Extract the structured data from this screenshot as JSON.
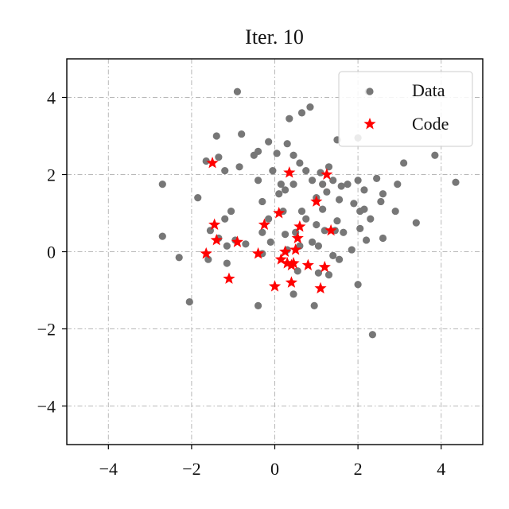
{
  "chart_data": {
    "type": "scatter",
    "title": "Iter. 10",
    "xlabel": "",
    "ylabel": "",
    "xlim": [
      -5,
      5
    ],
    "ylim": [
      -5,
      5
    ],
    "xticks": [
      -4,
      -2,
      0,
      2,
      4
    ],
    "yticks": [
      -4,
      -2,
      0,
      2,
      4
    ],
    "xtick_labels": [
      "−4",
      "−2",
      "0",
      "2",
      "4"
    ],
    "ytick_labels": [
      "−4",
      "−2",
      "0",
      "2",
      "4"
    ],
    "grid": true,
    "legend": {
      "position": "top-right",
      "entries": [
        "Data",
        "Code"
      ]
    },
    "series": [
      {
        "name": "Data",
        "marker": "circle",
        "color": "#777777",
        "points": [
          [
            -0.9,
            4.15
          ],
          [
            2.25,
            4.15
          ],
          [
            -1.4,
            3.0
          ],
          [
            -0.8,
            3.05
          ],
          [
            -0.15,
            2.85
          ],
          [
            0.65,
            3.6
          ],
          [
            0.85,
            3.75
          ],
          [
            0.35,
            3.45
          ],
          [
            -0.4,
            2.6
          ],
          [
            0.05,
            2.55
          ],
          [
            0.3,
            2.8
          ],
          [
            0.45,
            2.5
          ],
          [
            1.5,
            2.9
          ],
          [
            2.0,
            2.95
          ],
          [
            -1.65,
            2.35
          ],
          [
            -1.35,
            2.45
          ],
          [
            -1.2,
            2.1
          ],
          [
            -0.5,
            2.5
          ],
          [
            -0.85,
            2.2
          ],
          [
            -0.05,
            2.1
          ],
          [
            0.6,
            2.3
          ],
          [
            0.75,
            2.1
          ],
          [
            1.1,
            2.05
          ],
          [
            1.3,
            2.2
          ],
          [
            -2.7,
            1.75
          ],
          [
            -1.85,
            1.4
          ],
          [
            -0.4,
            1.85
          ],
          [
            0.15,
            1.75
          ],
          [
            0.25,
            1.6
          ],
          [
            0.45,
            1.75
          ],
          [
            0.1,
            1.5
          ],
          [
            -0.3,
            1.3
          ],
          [
            0.9,
            1.85
          ],
          [
            1.15,
            1.75
          ],
          [
            1.25,
            1.55
          ],
          [
            1.4,
            1.85
          ],
          [
            1.6,
            1.7
          ],
          [
            1.75,
            1.75
          ],
          [
            2.0,
            1.85
          ],
          [
            2.15,
            1.6
          ],
          [
            2.45,
            1.9
          ],
          [
            1.0,
            1.4
          ],
          [
            0.65,
            1.05
          ],
          [
            0.2,
            1.05
          ],
          [
            -1.05,
            1.05
          ],
          [
            -1.2,
            0.85
          ],
          [
            -0.15,
            0.85
          ],
          [
            1.15,
            1.1
          ],
          [
            1.55,
            1.35
          ],
          [
            1.9,
            1.25
          ],
          [
            2.15,
            1.1
          ],
          [
            2.05,
            1.05
          ],
          [
            2.3,
            0.85
          ],
          [
            2.6,
            1.5
          ],
          [
            2.55,
            1.3
          ],
          [
            2.9,
            1.05
          ],
          [
            3.1,
            2.3
          ],
          [
            2.95,
            1.75
          ],
          [
            3.85,
            2.5
          ],
          [
            4.35,
            1.8
          ],
          [
            3.4,
            0.75
          ],
          [
            -2.7,
            0.4
          ],
          [
            -1.55,
            0.55
          ],
          [
            -1.35,
            0.35
          ],
          [
            -0.95,
            0.3
          ],
          [
            -0.7,
            0.2
          ],
          [
            -0.3,
            0.5
          ],
          [
            0.25,
            0.45
          ],
          [
            0.5,
            0.5
          ],
          [
            0.75,
            0.85
          ],
          [
            1.0,
            0.7
          ],
          [
            1.2,
            0.55
          ],
          [
            1.5,
            0.8
          ],
          [
            1.45,
            0.55
          ],
          [
            1.65,
            0.5
          ],
          [
            2.05,
            0.6
          ],
          [
            2.2,
            0.3
          ],
          [
            2.6,
            0.35
          ],
          [
            1.85,
            0.05
          ],
          [
            1.05,
            0.15
          ],
          [
            0.9,
            0.25
          ],
          [
            0.6,
            0.15
          ],
          [
            0.3,
            0.05
          ],
          [
            -0.1,
            0.25
          ],
          [
            -1.15,
            0.15
          ],
          [
            -0.3,
            -0.05
          ],
          [
            1.4,
            -0.1
          ],
          [
            1.55,
            -0.2
          ],
          [
            -2.3,
            -0.15
          ],
          [
            -1.6,
            -0.2
          ],
          [
            -1.15,
            -0.3
          ],
          [
            0.55,
            -0.5
          ],
          [
            1.05,
            -0.55
          ],
          [
            1.3,
            -0.6
          ],
          [
            2.0,
            -0.85
          ],
          [
            0.45,
            -1.1
          ],
          [
            -0.4,
            -1.4
          ],
          [
            -2.05,
            -1.3
          ],
          [
            0.95,
            -1.4
          ],
          [
            2.35,
            -2.15
          ]
        ]
      },
      {
        "name": "Code",
        "marker": "star",
        "color": "#ff0000",
        "points": [
          [
            -1.5,
            2.3
          ],
          [
            0.35,
            2.05
          ],
          [
            1.25,
            2.0
          ],
          [
            1.0,
            1.3
          ],
          [
            0.1,
            1.0
          ],
          [
            -0.25,
            0.7
          ],
          [
            -1.45,
            0.7
          ],
          [
            0.6,
            0.65
          ],
          [
            1.35,
            0.55
          ],
          [
            0.55,
            0.35
          ],
          [
            -1.4,
            0.3
          ],
          [
            -0.9,
            0.25
          ],
          [
            -1.65,
            -0.05
          ],
          [
            -0.4,
            -0.05
          ],
          [
            0.25,
            0.0
          ],
          [
            0.5,
            0.05
          ],
          [
            0.15,
            -0.2
          ],
          [
            0.3,
            -0.3
          ],
          [
            0.4,
            -0.35
          ],
          [
            0.45,
            -0.3
          ],
          [
            0.8,
            -0.35
          ],
          [
            1.2,
            -0.4
          ],
          [
            -1.1,
            -0.7
          ],
          [
            0.4,
            -0.8
          ],
          [
            0.0,
            -0.9
          ],
          [
            1.1,
            -0.95
          ]
        ]
      }
    ]
  }
}
